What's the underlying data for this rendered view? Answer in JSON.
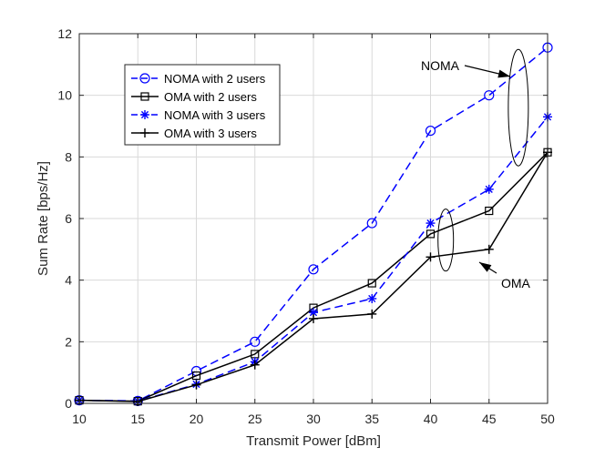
{
  "chart_data": {
    "type": "line",
    "title": "",
    "xlabel": "Transmit Power [dBm]",
    "ylabel": "Sum Rate [bps/Hz]",
    "xlim": [
      10,
      50
    ],
    "ylim": [
      0,
      12
    ],
    "xticks": [
      10,
      15,
      20,
      25,
      30,
      35,
      40,
      45,
      50
    ],
    "yticks": [
      0,
      2,
      4,
      6,
      8,
      10,
      12
    ],
    "grid": true,
    "legend_position": "top-left",
    "x": [
      10,
      15,
      20,
      25,
      30,
      35,
      40,
      45,
      50
    ],
    "series": [
      {
        "name": "NOMA with 2 users",
        "color": "#0000ff",
        "line": "dashed",
        "marker": "circle",
        "values": [
          0.1,
          0.08,
          1.05,
          2.0,
          4.35,
          5.85,
          8.85,
          10.0,
          11.55
        ]
      },
      {
        "name": "OMA with 2 users",
        "color": "#000000",
        "line": "solid",
        "marker": "square",
        "values": [
          0.1,
          0.07,
          0.9,
          1.6,
          3.1,
          3.9,
          5.5,
          6.25,
          8.15
        ]
      },
      {
        "name": "NOMA with 3 users",
        "color": "#0000ff",
        "line": "dashed",
        "marker": "asterisk",
        "values": [
          0.1,
          0.07,
          0.62,
          1.35,
          2.95,
          3.4,
          5.85,
          6.95,
          9.3
        ]
      },
      {
        "name": "OMA with 3 users",
        "color": "#000000",
        "line": "solid",
        "marker": "plus",
        "values": [
          0.1,
          0.06,
          0.6,
          1.25,
          2.75,
          2.9,
          4.75,
          5.0,
          8.15
        ]
      }
    ],
    "annotations": [
      {
        "text": "NOMA"
      },
      {
        "text": "OMA"
      }
    ]
  }
}
